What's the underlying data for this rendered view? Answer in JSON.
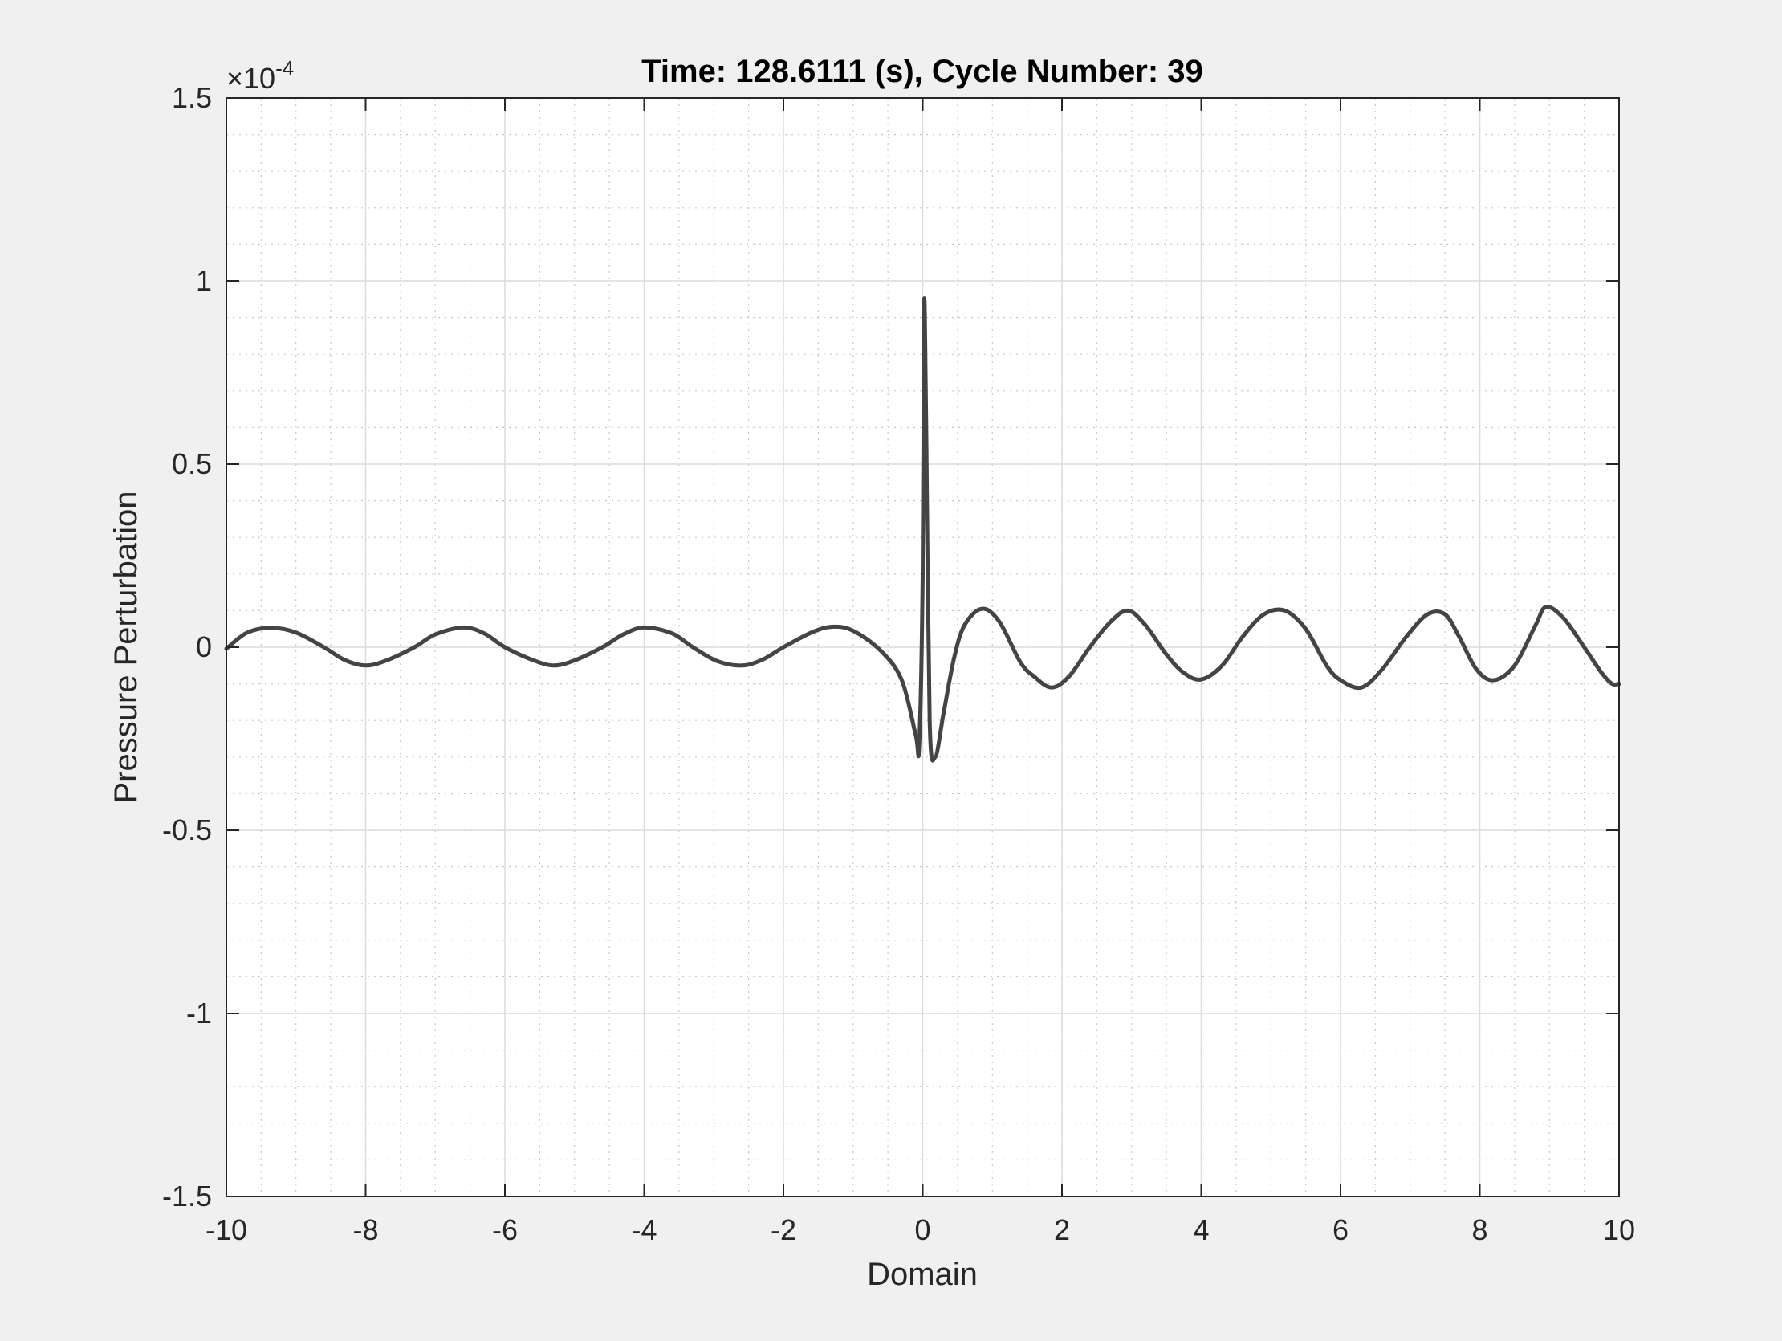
{
  "chart_data": {
    "type": "line",
    "title": "Time: 128.6111 (s), Cycle Number: 39",
    "xlabel": "Domain",
    "ylabel": "Pressure Perturbation",
    "xlim": [
      -10,
      10
    ],
    "ylim": [
      -1.5,
      1.5
    ],
    "y_exponent": {
      "base": "10",
      "power": "-4"
    },
    "xticks": [
      "-10",
      "-8",
      "-6",
      "-4",
      "-2",
      "0",
      "2",
      "4",
      "6",
      "8",
      "10"
    ],
    "yticks": [
      "-1.5",
      "-1",
      "-0.5",
      "0",
      "0.5",
      "1",
      "1.5"
    ],
    "grid": true,
    "minor_grid": true,
    "series": [
      {
        "color": "#444444",
        "x": [
          -10,
          -9.7,
          -9.35,
          -9.0,
          -8.6,
          -8.3,
          -8.0,
          -7.7,
          -7.3,
          -7.0,
          -6.6,
          -6.3,
          -6.0,
          -5.6,
          -5.3,
          -5.0,
          -4.6,
          -4.3,
          -4.0,
          -3.6,
          -3.3,
          -2.95,
          -2.6,
          -2.3,
          -2.0,
          -1.6,
          -1.3,
          -1.0,
          -0.6,
          -0.3,
          -0.1,
          -0.05,
          0.0,
          0.02,
          0.05,
          0.1,
          0.18,
          0.3,
          0.45,
          0.6,
          0.85,
          1.1,
          1.4,
          1.6,
          1.85,
          2.1,
          2.4,
          2.7,
          2.95,
          3.2,
          3.5,
          3.75,
          4.0,
          4.3,
          4.6,
          4.9,
          5.2,
          5.5,
          5.8,
          6.0,
          6.3,
          6.6,
          6.95,
          7.25,
          7.5,
          7.7,
          7.95,
          8.2,
          8.5,
          8.8,
          8.95,
          9.2,
          9.5,
          9.75,
          9.9,
          10.0
        ],
        "y": [
          -0.004,
          0.04,
          0.053,
          0.04,
          0.0,
          -0.035,
          -0.05,
          -0.036,
          0.0,
          0.035,
          0.054,
          0.038,
          0.0,
          -0.035,
          -0.05,
          -0.036,
          0.0,
          0.035,
          0.054,
          0.038,
          0.0,
          -0.038,
          -0.05,
          -0.034,
          0.0,
          0.04,
          0.056,
          0.045,
          -0.01,
          -0.09,
          -0.24,
          -0.265,
          0.2,
          0.94,
          0.6,
          -0.2,
          -0.3,
          -0.18,
          -0.03,
          0.06,
          0.105,
          0.07,
          -0.04,
          -0.08,
          -0.11,
          -0.08,
          0.0,
          0.07,
          0.1,
          0.06,
          -0.02,
          -0.07,
          -0.088,
          -0.05,
          0.03,
          0.09,
          0.1,
          0.05,
          -0.05,
          -0.09,
          -0.11,
          -0.06,
          0.03,
          0.09,
          0.09,
          0.03,
          -0.06,
          -0.09,
          -0.05,
          0.06,
          0.11,
          0.08,
          0.0,
          -0.07,
          -0.1,
          -0.1
        ]
      }
    ]
  }
}
